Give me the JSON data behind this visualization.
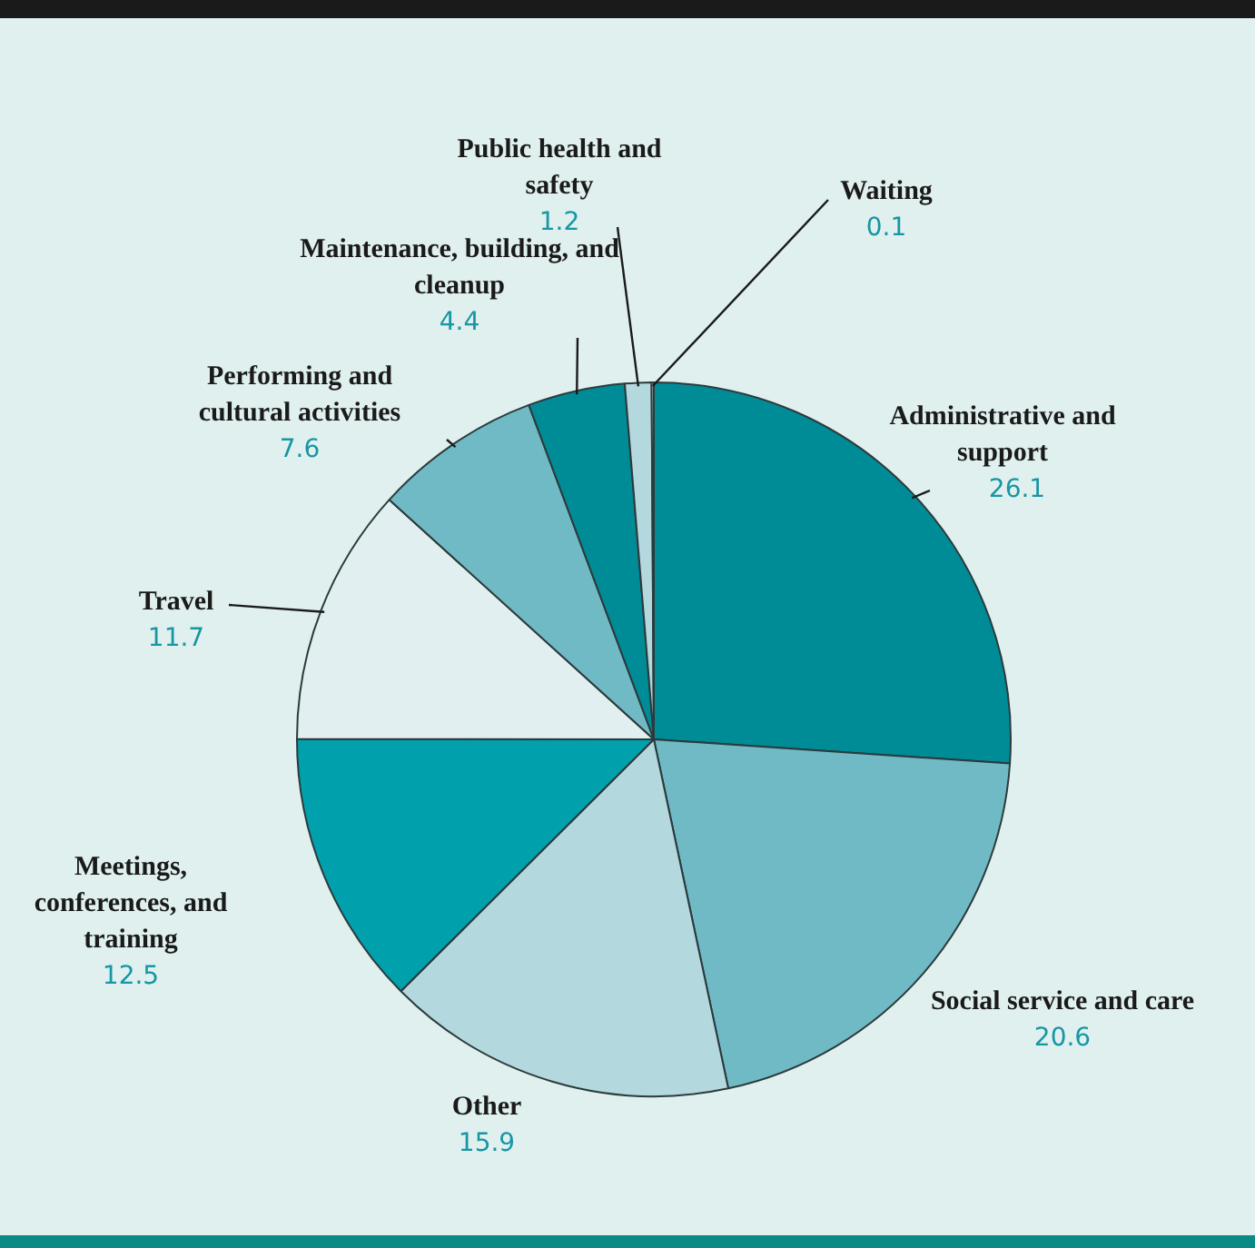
{
  "chart_data": {
    "type": "pie",
    "categories": [
      "Administrative and support",
      "Social service and care",
      "Other",
      "Meetings, conferences, and training",
      "Travel",
      "Performing and cultural activities",
      "Maintenance, building, and cleanup",
      "Public health and safety",
      "Waiting"
    ],
    "values": [
      26.1,
      20.6,
      15.9,
      12.5,
      11.7,
      7.6,
      4.4,
      1.2,
      0.1
    ],
    "colors": [
      "#008c97",
      "#6fbac5",
      "#b3d8de",
      "#00a0ad",
      "#e1eff1",
      "#6fbac5",
      "#008c97",
      "#b3d8de",
      "#e1eff1"
    ],
    "data_labels": true,
    "legend": false
  }
}
